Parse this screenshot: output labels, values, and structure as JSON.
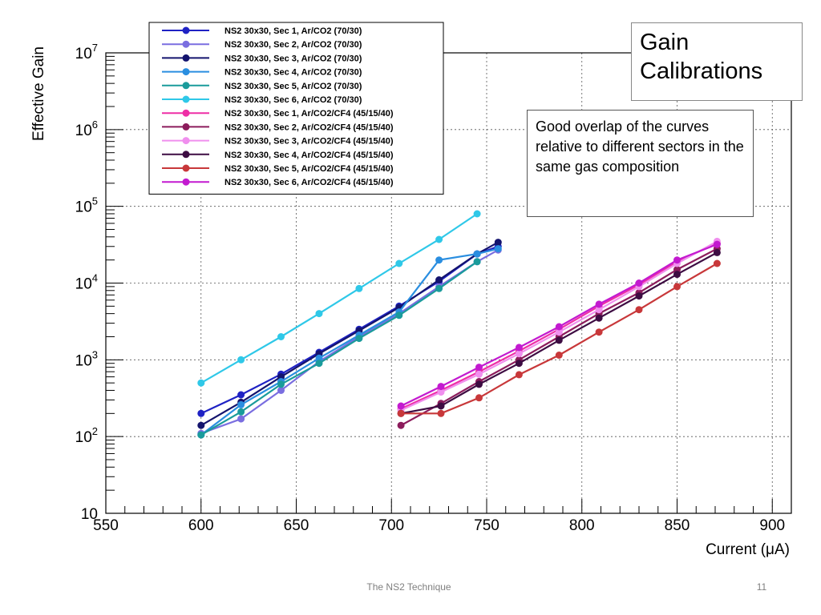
{
  "slide": {
    "title": "Gain Calibrations",
    "note": "Good overlap of the curves relative to different sectors in the same gas composition",
    "footer": "The NS2 Technique",
    "page_number": "11"
  },
  "chart_data": {
    "type": "line",
    "title": "",
    "xlabel": "Current (μA)",
    "ylabel": "Effective Gain",
    "xlim": [
      550,
      910
    ],
    "ylim": [
      10,
      10000000
    ],
    "y_scale": "log",
    "grid": true,
    "legend_position": "top-left",
    "x_ticks": [
      550,
      600,
      650,
      700,
      750,
      800,
      850,
      900
    ],
    "y_ticks": [
      {
        "value": 10,
        "base": "10",
        "exp": ""
      },
      {
        "value": 100,
        "base": "10",
        "exp": "2"
      },
      {
        "value": 1000,
        "base": "10",
        "exp": "3"
      },
      {
        "value": 10000,
        "base": "10",
        "exp": "4"
      },
      {
        "value": 100000,
        "base": "10",
        "exp": "5"
      },
      {
        "value": 1000000,
        "base": "10",
        "exp": "6"
      },
      {
        "value": 10000000,
        "base": "10",
        "exp": "7"
      }
    ],
    "series": [
      {
        "name": "NS2 30x30, Sec 1, Ar/CO2 (70/30)",
        "color": "#1f22c4",
        "x": [
          600,
          621,
          642,
          662,
          683,
          704,
          725,
          745,
          756
        ],
        "y": [
          200,
          350,
          650,
          1250,
          2500,
          5000,
          10500,
          24000,
          30000
        ]
      },
      {
        "name": "NS2 30x30, Sec 2, Ar/CO2 (70/30)",
        "color": "#7a6ee0",
        "x": [
          600,
          621,
          642,
          662,
          683,
          704,
          725,
          745,
          756
        ],
        "y": [
          110,
          170,
          400,
          950,
          2000,
          4000,
          9000,
          19000,
          27000
        ]
      },
      {
        "name": "NS2 30x30, Sec 3, Ar/CO2 (70/30)",
        "color": "#14146e",
        "x": [
          600,
          621,
          642,
          662,
          683,
          704,
          725,
          745,
          756
        ],
        "y": [
          140,
          280,
          600,
          1200,
          2400,
          4800,
          11000,
          24000,
          34000
        ]
      },
      {
        "name": "NS2 30x30, Sec 4, Ar/CO2 (70/30)",
        "color": "#2a8ee0",
        "x": [
          600,
          621,
          642,
          662,
          683,
          704,
          725,
          745,
          756
        ],
        "y": [
          105,
          260,
          520,
          1050,
          2100,
          4200,
          20000,
          24000,
          28000
        ]
      },
      {
        "name": "NS2 30x30, Sec 5, Ar/CO2 (70/30)",
        "color": "#1a9b9b",
        "x": [
          600,
          621,
          642,
          662,
          683,
          704,
          725,
          745
        ],
        "y": [
          105,
          210,
          480,
          900,
          1900,
          3800,
          8500,
          19000
        ]
      },
      {
        "name": "NS2 30x30, Sec 6, Ar/CO2 (70/30)",
        "color": "#2fc8e8",
        "x": [
          600,
          621,
          642,
          662,
          683,
          704,
          725,
          745
        ],
        "y": [
          500,
          1000,
          2000,
          4000,
          8500,
          18000,
          37000,
          80000
        ]
      },
      {
        "name": "NS2 30x30, Sec 1, Ar/CO2/CF4 (45/15/40)",
        "color": "#ee2fa6",
        "x": [
          705,
          726,
          746,
          767,
          788,
          809,
          830,
          850,
          871
        ],
        "y": [
          230,
          400,
          700,
          1300,
          2500,
          5000,
          9500,
          19000,
          33000
        ]
      },
      {
        "name": "NS2 30x30, Sec 2, Ar/CO2/CF4 (45/15/40)",
        "color": "#8c1c5c",
        "x": [
          705,
          726,
          746,
          767,
          788,
          809,
          830,
          850,
          871
        ],
        "y": [
          140,
          270,
          520,
          1000,
          2000,
          4000,
          7500,
          15000,
          28000
        ]
      },
      {
        "name": "NS2 30x30, Sec 3, Ar/CO2/CF4 (45/15/40)",
        "color": "#f08fee",
        "x": [
          705,
          726,
          746,
          767,
          788,
          809,
          830,
          850,
          871
        ],
        "y": [
          220,
          380,
          650,
          1200,
          2300,
          4500,
          9000,
          18000,
          35000
        ]
      },
      {
        "name": "NS2 30x30, Sec 4, Ar/CO2/CF4 (45/15/40)",
        "color": "#3d0c42",
        "x": [
          705,
          726,
          746,
          767,
          788,
          809,
          830,
          850,
          871
        ],
        "y": [
          200,
          250,
          480,
          900,
          1800,
          3500,
          6800,
          13000,
          25000
        ]
      },
      {
        "name": "NS2 30x30, Sec 5, Ar/CO2/CF4 (45/15/40)",
        "color": "#c8383a",
        "x": [
          705,
          726,
          746,
          767,
          788,
          809,
          830,
          850,
          871
        ],
        "y": [
          200,
          200,
          320,
          640,
          1150,
          2300,
          4500,
          9000,
          18000
        ]
      },
      {
        "name": "NS2 30x30, Sec 6, Ar/CO2/CF4 (45/15/40)",
        "color": "#c31ad0",
        "x": [
          705,
          726,
          746,
          767,
          788,
          809,
          830,
          850,
          871
        ],
        "y": [
          250,
          450,
          800,
          1450,
          2700,
          5300,
          10000,
          20000,
          32000
        ]
      }
    ]
  }
}
